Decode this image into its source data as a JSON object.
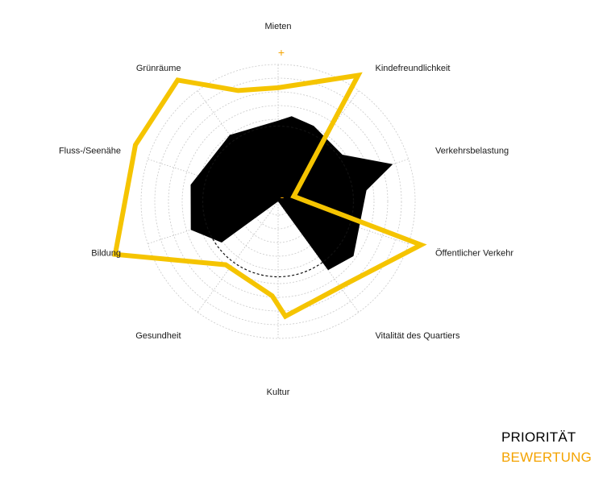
{
  "chart_data": {
    "type": "radar",
    "axes": [
      "Mieten",
      "Kindefreundlichkeit",
      "Verkehrsbelastung",
      "Öffentlicher Verkehr",
      "Vitalität des Quartiers",
      "Kultur",
      "Gesundheit",
      "Bildung",
      "Fluss-/Seenähe",
      "Grünräume"
    ],
    "scale_max_label": "+",
    "scale_min_label": "-",
    "range": [
      0,
      10
    ],
    "rings": 10,
    "reference_level": 5.5,
    "series": [
      {
        "name": "PRIORITÄT",
        "color": "#000000",
        "style": "filled",
        "points": [
          [
            0,
            5.9
          ],
          [
            0.25,
            6.3
          ],
          [
            0.7,
            6.1
          ],
          [
            1.5,
            5.8
          ],
          [
            2.0,
            8.8
          ],
          [
            2.3,
            6.5
          ],
          [
            3.5,
            6.8
          ],
          [
            4.0,
            6.2
          ],
          [
            5.0,
            0.0
          ],
          [
            6.5,
            5.1
          ],
          [
            7.0,
            6.7
          ],
          [
            7.8,
            6.5
          ],
          [
            9.0,
            6.0
          ]
        ]
      },
      {
        "name": "BEWERTUNG",
        "color": "#f5c400",
        "style": "outline",
        "points": [
          [
            0,
            8.3
          ],
          [
            0.9,
            10.9
          ],
          [
            2.0,
            1.2
          ],
          [
            2.97,
            10.9
          ],
          [
            3.9,
            7.8
          ],
          [
            4.9,
            8.4
          ],
          [
            5.1,
            6.9
          ],
          [
            6.1,
            6.0
          ],
          [
            7.0,
            12.5
          ],
          [
            8.1,
            11.2
          ],
          [
            8.9,
            11.5
          ],
          [
            9.45,
            8.6
          ]
        ]
      }
    ],
    "legend_position": "bottom-right"
  }
}
